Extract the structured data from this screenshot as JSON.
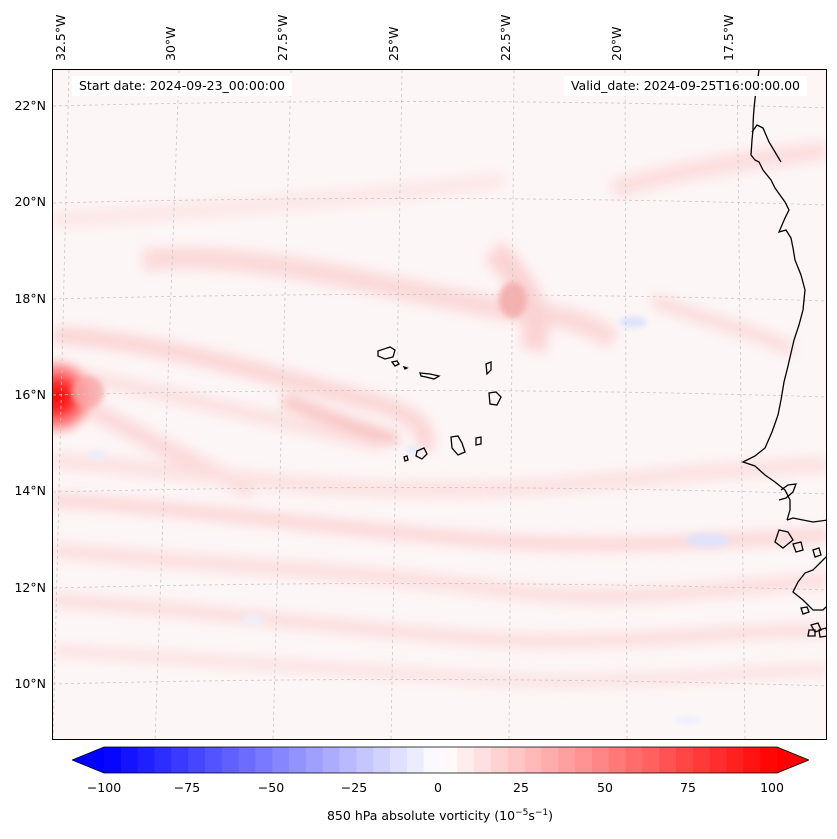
{
  "map": {
    "start_label": "Start date: 2024-09-23_00:00:00",
    "valid_label": "Valid_date: 2024-09-25T16:00:00.00",
    "lon_labels": [
      "32.5°W",
      "30°W",
      "27.5°W",
      "25°W",
      "22.5°W",
      "20°W",
      "17.5°W"
    ],
    "lat_labels": [
      "22°N",
      "20°N",
      "18°N",
      "16°N",
      "14°N",
      "12°N",
      "10°N"
    ],
    "background_color": "#fdf6f6",
    "coastline_color": "#000000",
    "grid_color": "#c8c8c8"
  },
  "colorbar": {
    "title": "850 hPa absolute vorticity (10",
    "title_sup1": "−5",
    "title_mid": "s",
    "title_sup2": "−1",
    "title_end": ")",
    "ticks": [
      "−100",
      "−75",
      "−50",
      "−25",
      "0",
      "25",
      "50",
      "75",
      "100"
    ],
    "min_color": "#0000ff",
    "mid_color": "#ffffff",
    "max_color": "#ff0000"
  }
}
